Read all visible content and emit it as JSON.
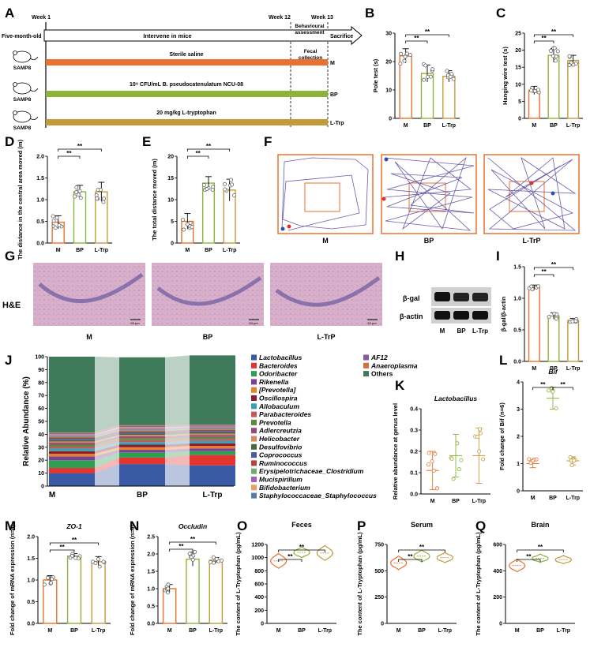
{
  "panel_letters": {
    "A": "A",
    "B": "B",
    "C": "C",
    "D": "D",
    "E": "E",
    "F": "F",
    "G": "G",
    "H": "H",
    "I": "I",
    "J": "J",
    "K": "K",
    "L": "L",
    "M": "M",
    "N": "N",
    "O": "O",
    "P": "P",
    "Q": "Q"
  },
  "colors": {
    "M": "#e8722e",
    "BP": "#8db33a",
    "LTrp": "#c29a3a",
    "dots": "#666666",
    "track": "#6a5aa8"
  },
  "sig": "**",
  "groups": [
    "M",
    "BP",
    "L-Trp"
  ],
  "groups_trp": [
    "M",
    "BP",
    "L-TrP"
  ],
  "scheme": {
    "week1": "Week 1",
    "week12": "Week 12",
    "week13": "Week 13",
    "side_label": "Five-month-old",
    "mouse_label": "SAMP8",
    "intervene": "Intervene in mice",
    "behaviour": "Behavioural assessment",
    "sacrifice": "Sacrifice",
    "fecal": "Fecal collection",
    "saline": "Sterile saline",
    "bp_dose": "10⁹ CFU/mL B. pseudocatenulatum NCU-08",
    "trp_dose": "20 mg/kg L-tryptophan",
    "row_tags": [
      "M",
      "BP",
      "L-Trp"
    ]
  },
  "panel_F": {
    "labels": [
      "M",
      "BP",
      "L-TrP"
    ]
  },
  "panel_G": {
    "stain": "H&E",
    "labels": [
      "M",
      "BP",
      "L-TrP"
    ],
    "scale": "50 μm"
  },
  "panel_H": {
    "bands": [
      "β-gal",
      "β-actin"
    ],
    "lanes": [
      "M",
      "BP",
      "L-Trp"
    ]
  },
  "chart_data": [
    {
      "panel": "B",
      "type": "bar",
      "title": "",
      "ylabel": "Pole test (s)",
      "ylim": [
        0,
        30
      ],
      "ticks": [
        "0",
        "10",
        "20",
        "30"
      ],
      "categories": [
        "M",
        "BP",
        "L-Trp"
      ],
      "values": [
        22,
        15.8,
        14.8
      ],
      "errors": [
        2.5,
        3,
        2
      ]
    },
    {
      "panel": "C",
      "type": "bar",
      "title": "",
      "ylabel": "Hanging wire test (s)",
      "ylim": [
        0,
        25
      ],
      "ticks": [
        "0",
        "5",
        "10",
        "15",
        "20",
        "25"
      ],
      "categories": [
        "M",
        "BP",
        "L-Trp"
      ],
      "values": [
        8.2,
        18.5,
        17
      ],
      "errors": [
        1.2,
        2,
        1.5
      ]
    },
    {
      "panel": "D",
      "type": "bar",
      "title": "",
      "ylabel": "The distance in the central area moved (m)",
      "ylim": [
        0,
        2.0
      ],
      "ticks": [
        "0.0",
        "0.5",
        "1.0",
        "1.5",
        "2.0"
      ],
      "categories": [
        "M",
        "BP",
        "L-Trp"
      ],
      "values": [
        0.48,
        1.18,
        1.18
      ],
      "errors": [
        0.15,
        0.15,
        0.22
      ]
    },
    {
      "panel": "E",
      "type": "bar",
      "title": "",
      "ylabel": "The total distance moved (m)",
      "ylim": [
        0,
        20
      ],
      "ticks": [
        "0",
        "5",
        "10",
        "15",
        "20"
      ],
      "categories": [
        "M",
        "BP",
        "L-Trp"
      ],
      "values": [
        5,
        13.8,
        12.2
      ],
      "errors": [
        1.8,
        1.5,
        2.5
      ]
    },
    {
      "panel": "I",
      "type": "bar",
      "title": "",
      "ylabel": "β-gal/β-actin",
      "ylim": [
        0,
        1.5
      ],
      "ticks": [
        "0.0",
        "0.5",
        "1.0",
        "1.5"
      ],
      "categories": [
        "M",
        "BP",
        "L-Trp"
      ],
      "values": [
        1.17,
        0.72,
        0.65
      ],
      "errors": [
        0.04,
        0.05,
        0.03
      ]
    },
    {
      "panel": "J",
      "type": "area",
      "title": "",
      "ylabel": "Relative Abundance (%)",
      "ylim": [
        0,
        100
      ],
      "ticks": [
        "0",
        "10",
        "20",
        "30",
        "40",
        "50",
        "60",
        "70",
        "80",
        "90",
        "100"
      ],
      "categories": [
        "M",
        "BP",
        "L-Trp"
      ],
      "series": [
        {
          "name": "Lactobacillus",
          "color": "#3a5aa6",
          "values": [
            10,
            17,
            16
          ]
        },
        {
          "name": "Bacteroides",
          "color": "#e3342f",
          "values": [
            4,
            5,
            8
          ]
        },
        {
          "name": "Odoribacter",
          "color": "#2e9e52",
          "values": [
            6,
            4,
            3
          ]
        },
        {
          "name": "Rikenella",
          "color": "#7b3f98",
          "values": [
            3,
            2,
            2
          ]
        },
        {
          "name": "[Prevotella]",
          "color": "#e58324",
          "values": [
            2,
            2,
            2
          ]
        },
        {
          "name": "Oscillospira",
          "color": "#8a1c3a",
          "values": [
            2,
            2,
            2
          ]
        },
        {
          "name": "Allobaculum",
          "color": "#3aa0b5",
          "values": [
            2,
            2,
            2
          ]
        },
        {
          "name": "Parabacteroides",
          "color": "#c05a5a",
          "values": [
            1.5,
            1.5,
            1.5
          ]
        },
        {
          "name": "Prevotella",
          "color": "#5b8a3a",
          "values": [
            1.5,
            1.5,
            1.5
          ]
        },
        {
          "name": "Adlercreutzia",
          "color": "#9a4a7a",
          "values": [
            1.5,
            1.5,
            1.5
          ]
        },
        {
          "name": "Helicobacter",
          "color": "#d98a5a",
          "values": [
            1,
            1,
            1
          ]
        },
        {
          "name": "Desulfovibrio",
          "color": "#4a6a3a",
          "values": [
            1,
            1,
            1
          ]
        },
        {
          "name": "Coprococcus",
          "color": "#4a5aa0",
          "values": [
            1,
            1,
            1
          ]
        },
        {
          "name": "Ruminococcus",
          "color": "#b8403a",
          "values": [
            1,
            1,
            1
          ]
        },
        {
          "name": "Erysipelotrichaceae_Clostridium",
          "color": "#6ab06a",
          "values": [
            1,
            1,
            1
          ]
        },
        {
          "name": "Mucispirillum",
          "color": "#a060c0",
          "values": [
            1,
            1,
            1
          ]
        },
        {
          "name": "Bifidobacterium",
          "color": "#e8a060",
          "values": [
            0.5,
            1,
            0.5
          ]
        },
        {
          "name": "Staphylococcaceae_Staphylococcus",
          "color": "#5a7aa8",
          "values": [
            0.5,
            0.5,
            0.5
          ]
        },
        {
          "name": "AF12",
          "color": "#8a5aa0",
          "values": [
            0.5,
            0.5,
            0.5
          ]
        },
        {
          "name": "Anaeroplasma",
          "color": "#d0703a",
          "values": [
            0.5,
            0.5,
            0.5
          ]
        },
        {
          "name": "Others",
          "color": "#3f7a5a",
          "values": [
            58.5,
            52.5,
            53.5
          ]
        }
      ]
    },
    {
      "panel": "K",
      "type": "scatter",
      "title": "Lactobacillus",
      "ylabel": "Relative abundance at genus level",
      "ylim": [
        0,
        0.4
      ],
      "ticks": [
        "0.0",
        "0.1",
        "0.2",
        "0.3",
        "0.4"
      ],
      "categories": [
        "M",
        "BP",
        "L-Trp"
      ],
      "values": [
        0.11,
        0.18,
        0.18
      ],
      "errors": [
        0.09,
        0.1,
        0.13
      ]
    },
    {
      "panel": "L",
      "type": "scatter",
      "title": "Bif",
      "ylabel": "Fold change of Bif (n=6)",
      "ylim": [
        0,
        4
      ],
      "ticks": [
        "0",
        "1",
        "2",
        "3",
        "4"
      ],
      "categories": [
        "M",
        "BP",
        "L-Trp"
      ],
      "values": [
        1,
        3.4,
        1.1
      ],
      "errors": [
        0.15,
        0.4,
        0.15
      ]
    },
    {
      "panel": "M",
      "type": "bar",
      "title": "ZO-1",
      "ylabel": "Fold change of mRNA expression (n=6)",
      "ylim": [
        0,
        2.0
      ],
      "ticks": [
        "0.0",
        "0.5",
        "1.0",
        "1.5",
        "2.0"
      ],
      "categories": [
        "M",
        "BP",
        "L-Trp"
      ],
      "values": [
        1.0,
        1.55,
        1.42
      ],
      "errors": [
        0.1,
        0.06,
        0.12
      ]
    },
    {
      "panel": "N",
      "type": "bar",
      "title": "Occludin",
      "ylabel": "Fold change of mRNA expression (n=6)",
      "ylim": [
        0,
        2.5
      ],
      "ticks": [
        "0.0",
        "0.5",
        "1.0",
        "1.5",
        "2.0",
        "2.5"
      ],
      "categories": [
        "M",
        "BP",
        "L-Trp"
      ],
      "values": [
        1.0,
        1.85,
        1.82
      ],
      "errors": [
        0.12,
        0.2,
        0.08
      ]
    },
    {
      "panel": "O",
      "type": "violin",
      "title": "Feces",
      "ylabel": "The content of L-Tryptophan (pg/mL)",
      "ylim": [
        0,
        1200
      ],
      "ticks": [
        "0",
        "200",
        "400",
        "600",
        "800",
        "1000",
        "1200"
      ],
      "categories": [
        "M",
        "BP",
        "L-Trp"
      ],
      "values": [
        950,
        1080,
        1070
      ],
      "errors": [
        70,
        50,
        70
      ]
    },
    {
      "panel": "P",
      "type": "violin",
      "title": "Serum",
      "ylabel": "The content of L-Tryptophan (pg/mL)",
      "ylim": [
        0,
        750
      ],
      "ticks": [
        "0",
        "250",
        "500",
        "750"
      ],
      "categories": [
        "M",
        "BP",
        "L-Trp"
      ],
      "values": [
        575,
        640,
        625
      ],
      "errors": [
        40,
        35,
        30
      ]
    },
    {
      "panel": "Q",
      "type": "violin",
      "title": "Brain",
      "ylabel": "The content of L-Tryptophan (pg/mL)",
      "ylim": [
        0,
        600
      ],
      "ticks": [
        "0",
        "200",
        "400",
        "600"
      ],
      "categories": [
        "M",
        "BP",
        "L-Trp"
      ],
      "values": [
        440,
        495,
        485
      ],
      "errors": [
        30,
        20,
        20
      ]
    }
  ]
}
